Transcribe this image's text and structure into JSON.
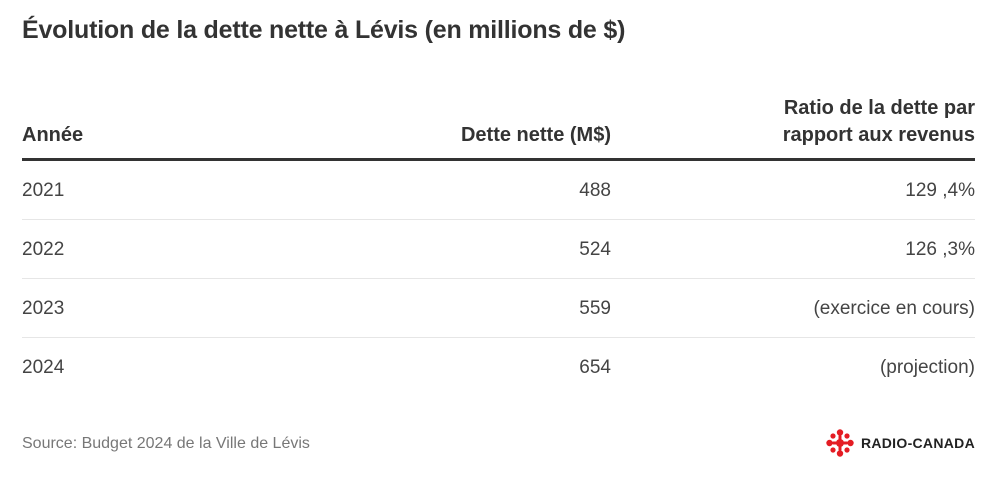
{
  "chart_data": {
    "type": "table",
    "title": "Évolution de la dette nette à Lévis (en millions de $)",
    "columns": [
      "Année",
      "Dette nette (M$)",
      "Ratio de la dette par rapport aux revenus"
    ],
    "rows": [
      {
        "year": "2021",
        "debt": "488",
        "ratio": "129 ,4%"
      },
      {
        "year": "2022",
        "debt": "524",
        "ratio": "126 ,3%"
      },
      {
        "year": "2023",
        "debt": "559",
        "ratio": "(exercice en cours)"
      },
      {
        "year": "2024",
        "debt": "654",
        "ratio": "(projection)"
      }
    ],
    "source": "Source: Budget 2024 de la Ville de Lévis"
  },
  "header": {
    "year": "Année",
    "debt": "Dette nette (M$)",
    "ratio_line1": "Ratio de la dette par",
    "ratio_line2": "rapport aux revenus"
  },
  "brand": {
    "name": "RADIO-CANADA",
    "logo_icon": "radio-canada-gem-icon",
    "logo_color": "#e41c23"
  }
}
